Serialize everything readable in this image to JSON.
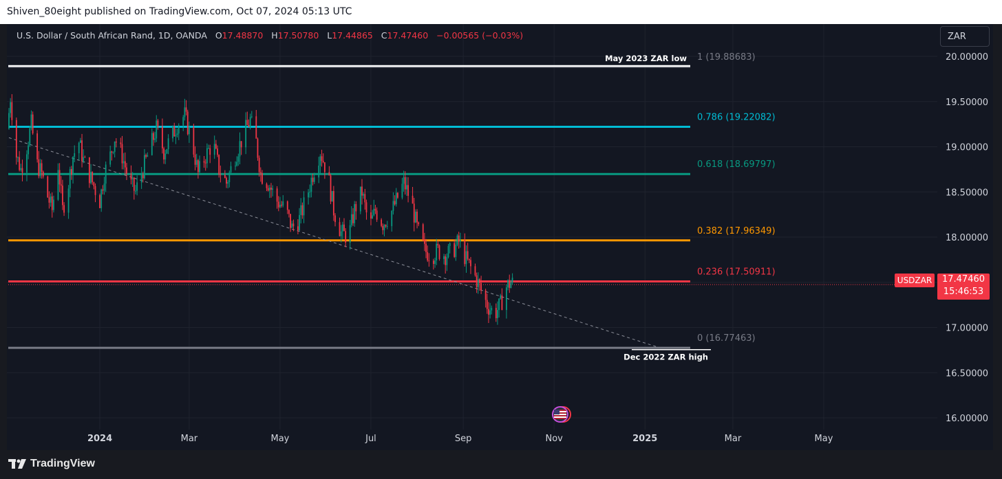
{
  "header": {
    "published": "Shiven_80eight published on TradingView.com, Oct 07, 2024 05:13 UTC"
  },
  "legend": {
    "symbol": "U.S. Dollar / South African Rand, 1D, OANDA",
    "o_label": "O",
    "o_value": "17.48870",
    "h_label": "H",
    "h_value": "17.50780",
    "l_label": "L",
    "l_value": "17.44865",
    "c_label": "C",
    "c_value": "17.47460",
    "change": "−0.00565 (−0.03%)"
  },
  "currency_button": "ZAR",
  "price_tag": {
    "symbol": "USDZAR",
    "price": "17.47460",
    "countdown": "15:46:53"
  },
  "brand": {
    "name": "TradingView"
  },
  "colors": {
    "up": "#089981",
    "down": "#f23645",
    "background": "#131722",
    "grid": "#1e222d",
    "axis_text": "#d1d4dc"
  },
  "chart_data": {
    "type": "candlestick",
    "symbol": "USDZAR",
    "interval": "1D",
    "y_axis": {
      "ticks": [
        16.0,
        16.5,
        17.0,
        17.5,
        18.0,
        18.5,
        19.0,
        19.5,
        20.0
      ],
      "tick_labels": [
        "16.00000",
        "16.50000",
        "17.00000",
        "17.50000",
        "18.00000",
        "18.50000",
        "19.00000",
        "19.50000",
        "20.00000"
      ],
      "range": [
        15.92,
        20.25
      ]
    },
    "x_axis": {
      "tick_labels": [
        "2024",
        "Mar",
        "May",
        "Jul",
        "Sep",
        "Nov",
        "2025",
        "Mar",
        "May"
      ],
      "range": [
        "2023-11-01",
        "2025-06-30"
      ]
    },
    "fib_levels": [
      {
        "ratio": "1",
        "price": 19.88683,
        "label": "1 (19.88683)",
        "color": "#787b86"
      },
      {
        "ratio": "0.786",
        "price": 19.22082,
        "label": "0.786 (19.22082)",
        "color": "#00bcd4"
      },
      {
        "ratio": "0.618",
        "price": 18.69797,
        "label": "0.618 (18.69797)",
        "color": "#089981"
      },
      {
        "ratio": "0.382",
        "price": 17.96349,
        "label": "0.382 (17.96349)",
        "color": "#ff9800"
      },
      {
        "ratio": "0.236",
        "price": 17.50911,
        "label": "0.236 (17.50911)",
        "color": "#f23645"
      },
      {
        "ratio": "0",
        "price": 16.77463,
        "label": "0 (16.77463)",
        "color": "#787b86"
      }
    ],
    "annotations": [
      {
        "text": "May 2023 ZAR low",
        "price": 19.97
      },
      {
        "text": "Dec 2022 ZAR high",
        "price": 16.77
      }
    ],
    "trendline": {
      "start": {
        "date": "2023-11-01",
        "price": 19.1
      },
      "end": {
        "date": "2025-01-10",
        "price": 16.78
      },
      "style": "dashed"
    },
    "last_price": 17.4746,
    "price_path": [
      [
        "2023-11-01",
        19.2
      ],
      [
        "2023-11-03",
        19.55
      ],
      [
        "2023-11-07",
        18.9
      ],
      [
        "2023-11-10",
        18.75
      ],
      [
        "2023-11-14",
        19.0
      ],
      [
        "2023-11-17",
        19.25
      ],
      [
        "2023-11-21",
        18.8
      ],
      [
        "2023-11-24",
        18.7
      ],
      [
        "2023-11-28",
        18.45
      ],
      [
        "2023-12-01",
        18.3
      ],
      [
        "2023-12-05",
        18.8
      ],
      [
        "2023-12-08",
        18.3
      ],
      [
        "2023-12-12",
        18.6
      ],
      [
        "2023-12-15",
        18.9
      ],
      [
        "2023-12-19",
        19.05
      ],
      [
        "2023-12-22",
        18.85
      ],
      [
        "2023-12-27",
        18.65
      ],
      [
        "2024-01-02",
        18.4
      ],
      [
        "2024-01-05",
        18.7
      ],
      [
        "2024-01-09",
        18.9
      ],
      [
        "2024-01-12",
        19.1
      ],
      [
        "2024-01-17",
        18.9
      ],
      [
        "2024-01-22",
        18.6
      ],
      [
        "2024-01-26",
        18.5
      ],
      [
        "2024-01-31",
        18.75
      ],
      [
        "2024-02-05",
        19.0
      ],
      [
        "2024-02-09",
        19.2
      ],
      [
        "2024-02-14",
        18.95
      ],
      [
        "2024-02-19",
        19.1
      ],
      [
        "2024-02-23",
        19.25
      ],
      [
        "2024-02-28",
        19.35
      ],
      [
        "2024-03-04",
        19.05
      ],
      [
        "2024-03-08",
        18.7
      ],
      [
        "2024-03-13",
        18.9
      ],
      [
        "2024-03-18",
        19.05
      ],
      [
        "2024-03-22",
        18.75
      ],
      [
        "2024-03-27",
        18.6
      ],
      [
        "2024-04-02",
        18.9
      ],
      [
        "2024-04-08",
        19.15
      ],
      [
        "2024-04-12",
        19.3
      ],
      [
        "2024-04-16",
        19.05
      ],
      [
        "2024-04-19",
        18.7
      ],
      [
        "2024-04-24",
        18.6
      ],
      [
        "2024-04-30",
        18.4
      ],
      [
        "2024-05-06",
        18.3
      ],
      [
        "2024-05-10",
        18.1
      ],
      [
        "2024-05-15",
        18.2
      ],
      [
        "2024-05-20",
        18.45
      ],
      [
        "2024-05-24",
        18.7
      ],
      [
        "2024-05-29",
        18.95
      ],
      [
        "2024-06-03",
        18.7
      ],
      [
        "2024-06-07",
        18.3
      ],
      [
        "2024-06-12",
        18.05
      ],
      [
        "2024-06-17",
        18.0
      ],
      [
        "2024-06-21",
        18.3
      ],
      [
        "2024-06-26",
        18.5
      ],
      [
        "2024-07-01",
        18.1
      ],
      [
        "2024-07-05",
        18.3
      ],
      [
        "2024-07-10",
        18.15
      ],
      [
        "2024-07-15",
        18.25
      ],
      [
        "2024-07-19",
        18.4
      ],
      [
        "2024-07-24",
        18.6
      ],
      [
        "2024-07-29",
        18.4
      ],
      [
        "2024-08-02",
        18.1
      ],
      [
        "2024-08-07",
        17.85
      ],
      [
        "2024-08-12",
        17.8
      ],
      [
        "2024-08-16",
        17.85
      ],
      [
        "2024-08-21",
        17.8
      ],
      [
        "2024-08-26",
        17.85
      ],
      [
        "2024-08-30",
        17.95
      ],
      [
        "2024-09-04",
        17.75
      ],
      [
        "2024-09-09",
        17.6
      ],
      [
        "2024-09-13",
        17.45
      ],
      [
        "2024-09-18",
        17.25
      ],
      [
        "2024-09-23",
        17.15
      ],
      [
        "2024-09-27",
        17.25
      ],
      [
        "2024-10-01",
        17.45
      ],
      [
        "2024-10-04",
        17.5
      ],
      [
        "2024-10-07",
        17.4746
      ]
    ]
  }
}
